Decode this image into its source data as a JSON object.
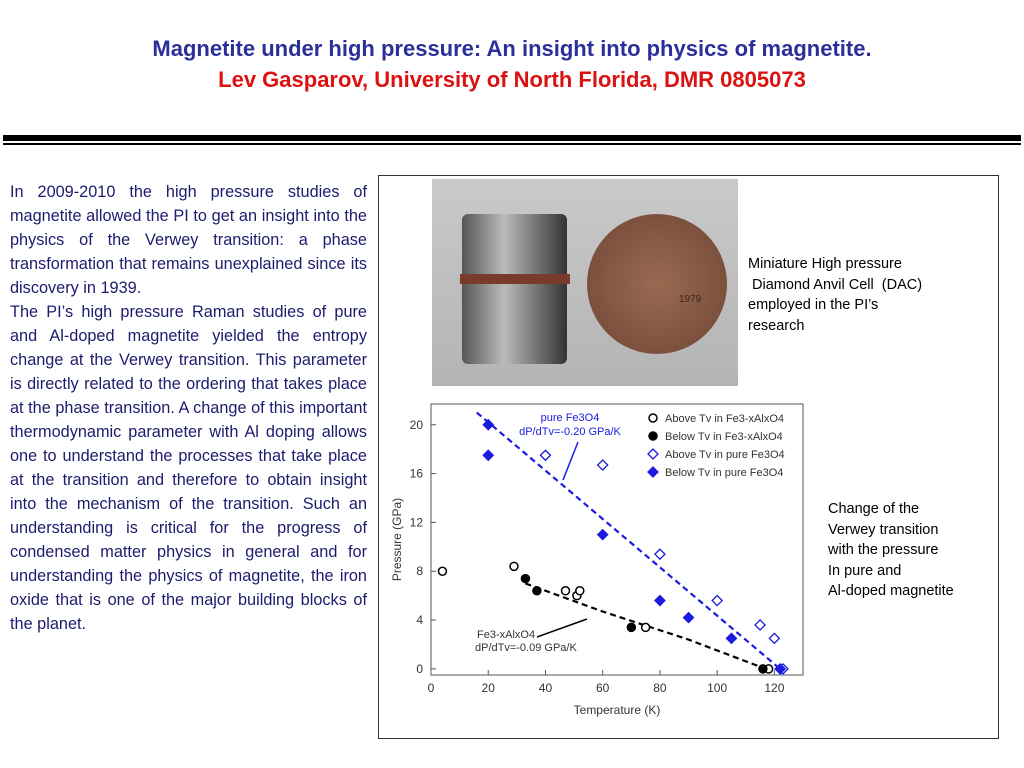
{
  "title": "Magnetite under high pressure: An insight into physics of magnetite.",
  "subtitle": "Lev Gasparov, University of North Florida, DMR 0805073",
  "body": [
    "In 2009-2010 the high  pressure studies of magnetite allowed the PI to get an insight into the physics of the Verwey transition: a phase transformation that remains unexplained since its discovery in 1939.",
    "The PI’s high pressure Raman studies of pure  and Al-doped magnetite yielded the entropy change at the Verwey transition. This parameter is directly related to the ordering that takes place at the phase transition. A change of this important thermodynamic parameter with Al doping allows one to understand the processes  that take place at the transition and therefore to obtain insight into the mechanism of the transition. Such an understanding is critical for the progress of condensed matter physics in general and for understanding the physics of magnetite, the iron oxide that is one of the major building blocks of the planet."
  ],
  "photo_caption": [
    "Miniature High pressure",
    " Diamond Anvil Cell  (DAC)",
    "employed in the PI’s",
    "research"
  ],
  "photo_coin_text": "1979",
  "chart_caption": [
    "Change of the",
    "Verwey transition",
    "with the pressure",
    "In  pure and",
    "Al-doped magnetite"
  ],
  "colors": {
    "title": "#2b2f9a",
    "subtitle": "#dd1111",
    "pure": "#1a1ae0",
    "doped": "#000000"
  },
  "chart_data": {
    "type": "scatter",
    "xlabel": "Temperature (K)",
    "ylabel": "Pressure (GPa)",
    "xlim": [
      0,
      130
    ],
    "ylim": [
      -0.5,
      21.7
    ],
    "xticks": [
      0,
      20,
      40,
      60,
      80,
      100,
      120
    ],
    "yticks": [
      0,
      4,
      8,
      12,
      16,
      20
    ],
    "legend_position": "top-right",
    "series": [
      {
        "name": "Above Tv in Fe3-xAlxO4",
        "marker": "open-circle",
        "color": "#000000",
        "x": [
          4,
          29,
          47,
          51,
          52,
          75,
          118
        ],
        "y": [
          8,
          8.4,
          6.4,
          6,
          6.4,
          3.4,
          0
        ]
      },
      {
        "name": "Below Tv in Fe3-xAlxO4",
        "marker": "filled-circle",
        "color": "#000000",
        "x": [
          33,
          37,
          70,
          116
        ],
        "y": [
          7.4,
          6.4,
          3.4,
          0
        ]
      },
      {
        "name": "Above Tv in pure Fe3O4",
        "marker": "open-diamond",
        "color": "#1a1ae0",
        "x": [
          40,
          60,
          80,
          100,
          115,
          120,
          123
        ],
        "y": [
          17.5,
          16.7,
          9.4,
          5.6,
          3.6,
          2.5,
          0
        ]
      },
      {
        "name": "Below  Tv in pure Fe3O4",
        "marker": "filled-diamond",
        "color": "#1a1ae0",
        "x": [
          20,
          20,
          60,
          80,
          90,
          105,
          122
        ],
        "y": [
          20,
          17.5,
          11,
          5.6,
          4.2,
          2.5,
          0
        ]
      }
    ],
    "fits": [
      {
        "color": "#1a1ae0",
        "x": [
          16,
          122
        ],
        "y": [
          21,
          0
        ]
      },
      {
        "color": "#000000",
        "x": [
          33,
          60,
          90,
          117
        ],
        "y": [
          7,
          4.7,
          2.4,
          0
        ]
      }
    ],
    "annotations": [
      {
        "line1": "pure Fe3O4",
        "line2": "dP/dTv=-0.20 GPa/K",
        "color": "#1a1ae0"
      },
      {
        "line1": "Fe3-xAlxO4",
        "line2": "dP/dTv=-0.09 GPa/K",
        "color": "#000000"
      }
    ]
  }
}
